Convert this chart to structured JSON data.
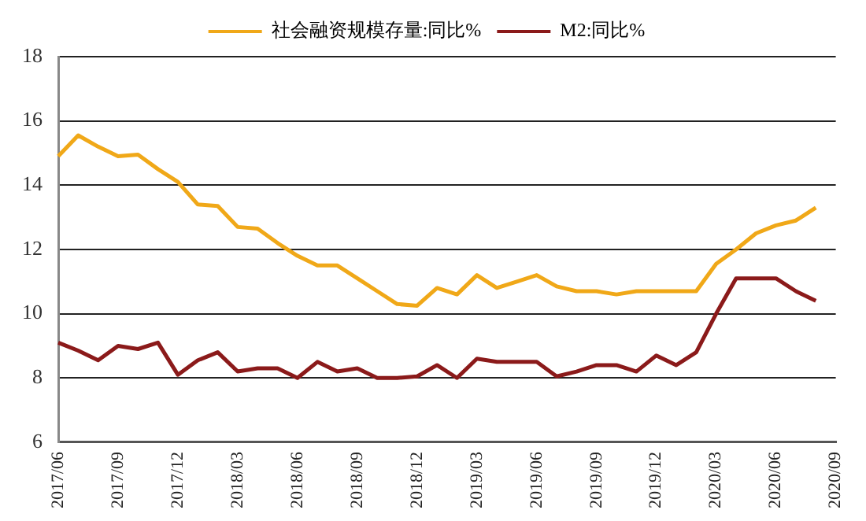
{
  "chart_data": {
    "type": "line",
    "categories": [
      "2017/06",
      null,
      null,
      "2017/09",
      null,
      null,
      "2017/12",
      null,
      null,
      "2018/03",
      null,
      null,
      "2018/06",
      null,
      null,
      "2018/09",
      null,
      null,
      "2018/12",
      null,
      null,
      "2019/03",
      null,
      null,
      "2019/06",
      null,
      null,
      "2019/09",
      null,
      null,
      "2019/12",
      null,
      null,
      "2020/03",
      null,
      null,
      "2020/06",
      null,
      null,
      "2020/09"
    ],
    "series": [
      {
        "name": "社会融资规模存量:同比%",
        "color": "#f0a818",
        "values": [
          14.9,
          15.55,
          15.2,
          14.9,
          14.95,
          14.5,
          14.1,
          13.4,
          13.35,
          12.7,
          12.65,
          12.2,
          11.8,
          11.5,
          11.5,
          11.1,
          10.7,
          10.3,
          10.25,
          10.8,
          10.6,
          11.2,
          10.8,
          11.0,
          11.2,
          10.85,
          10.7,
          10.7,
          10.6,
          10.7,
          10.7,
          10.7,
          10.7,
          11.55,
          12.0,
          12.5,
          12.75,
          12.9,
          13.3,
          null
        ]
      },
      {
        "name": "M2:同比%",
        "color": "#8b1a1a",
        "values": [
          9.1,
          8.85,
          8.55,
          9.0,
          8.9,
          9.1,
          8.1,
          8.55,
          8.8,
          8.2,
          8.3,
          8.3,
          8.0,
          8.5,
          8.2,
          8.3,
          8.0,
          8.0,
          8.05,
          8.4,
          8.0,
          8.6,
          8.5,
          8.5,
          8.5,
          8.05,
          8.2,
          8.4,
          8.4,
          8.2,
          8.7,
          8.4,
          8.8,
          10.0,
          11.1,
          11.1,
          11.1,
          10.7,
          10.4,
          null
        ]
      }
    ],
    "ylim": [
      6,
      18
    ],
    "yticks": [
      6,
      8,
      10,
      12,
      14,
      16,
      18
    ],
    "grid": "y",
    "legend": "top",
    "marker": "none",
    "line_style": "solid"
  }
}
